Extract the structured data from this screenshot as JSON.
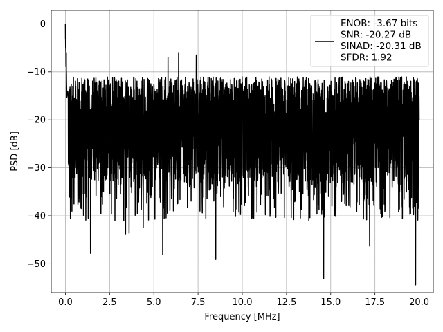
{
  "chart_data": {
    "type": "line",
    "title": "",
    "xlabel": "Frequency [MHz]",
    "ylabel": "PSD [dB]",
    "xlim": [
      -0.8,
      20.8
    ],
    "ylim": [
      -56,
      2.8
    ],
    "x_ticks": [
      0.0,
      2.5,
      5.0,
      7.5,
      10.0,
      12.5,
      15.0,
      17.5,
      20.0
    ],
    "x_tick_labels": [
      "0.0",
      "2.5",
      "5.0",
      "7.5",
      "10.0",
      "12.5",
      "15.0",
      "17.5",
      "20.0"
    ],
    "y_ticks": [
      0,
      -10,
      -20,
      -30,
      -40,
      -50
    ],
    "y_tick_labels": [
      "0",
      "−10",
      "−20",
      "−30",
      "−40",
      "−50"
    ],
    "grid": true,
    "legend_position": "top-right",
    "series": [
      {
        "name": "ENOB: -3.67 bits\nSNR: -20.27 dB\nSINAD: -20.31 dB\nSFDR: 1.92",
        "color": "#000000",
        "x_range": [
          0,
          20
        ],
        "description_points": [
          {
            "x": 0.0,
            "y": 0.0
          },
          {
            "x": 0.05,
            "y": -6.0
          },
          {
            "x": 0.12,
            "y": -14.0
          },
          {
            "x": 1.42,
            "y": -47.8
          },
          {
            "x": 3.4,
            "y": -43.9
          },
          {
            "x": 3.6,
            "y": -43.6
          },
          {
            "x": 4.4,
            "y": -42.5
          },
          {
            "x": 5.5,
            "y": -48.1
          },
          {
            "x": 5.8,
            "y": -7.0
          },
          {
            "x": 6.4,
            "y": -6.0
          },
          {
            "x": 7.4,
            "y": -6.5
          },
          {
            "x": 8.5,
            "y": -49.1
          },
          {
            "x": 14.6,
            "y": -53.1
          },
          {
            "x": 17.2,
            "y": -46.3
          },
          {
            "x": 19.8,
            "y": -54.4
          },
          {
            "x": 20.0,
            "y": -20.0
          }
        ],
        "typical_range": [
          -33,
          -11
        ]
      }
    ]
  }
}
